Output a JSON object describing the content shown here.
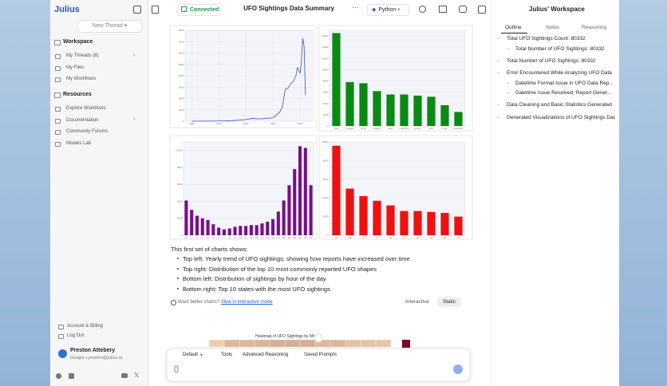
{
  "sidebar": {
    "brand": "Julius",
    "new_thread": "New Thread",
    "workspace": {
      "title": "Workspace",
      "items": [
        "My Threads (8)",
        "My Files",
        "My Workflows"
      ]
    },
    "resources": {
      "title": "Resources",
      "items": [
        "Explore Workflows",
        "Documentation",
        "Community Forums",
        "Models Lab"
      ]
    },
    "account": [
      "Account & Billing",
      "Log Out"
    ],
    "user": {
      "name": "Preston Attebery",
      "email": "Google • preston@julius.ai"
    }
  },
  "topbar": {
    "status": "Connected",
    "title": "UFO Sightings Data Summary",
    "language": "Python"
  },
  "charts": [
    {
      "type": "line",
      "color": "#3a4fd0",
      "x": [
        1930,
        1950,
        1960,
        1970,
        1975,
        1980,
        1985,
        1990,
        1995,
        1997,
        1999,
        2001,
        2003,
        2005,
        2007,
        2008,
        2009,
        2010,
        2011,
        2012,
        2013,
        2014
      ],
      "values": [
        0,
        20,
        50,
        150,
        250,
        200,
        250,
        300,
        800,
        1300,
        2800,
        2900,
        3300,
        3500,
        4000,
        4700,
        4500,
        4200,
        5200,
        7300,
        6600,
        2300
      ],
      "xlim": [
        1925,
        2020
      ],
      "xticks": [
        1930,
        1950,
        1970,
        1990,
        2010
      ],
      "ylim": [
        0,
        8000
      ],
      "yticks": [
        0,
        1000,
        2000,
        3000,
        4000,
        5000,
        6000,
        7000,
        8000
      ],
      "grid": true
    },
    {
      "type": "bar",
      "color": "#0a8a12",
      "categories": [
        "light",
        "triangle",
        "circle",
        "fireball",
        "other",
        "unknown",
        "sphere",
        "disk",
        "oval",
        "formation"
      ],
      "values": [
        16500,
        7800,
        7600,
        6200,
        5600,
        5600,
        5400,
        5200,
        3700,
        2500
      ],
      "ylim": [
        0,
        17000
      ],
      "yticks": [
        0,
        2000,
        4000,
        6000,
        8000,
        10000,
        12000,
        14000,
        16000
      ],
      "grid": true
    },
    {
      "type": "bar",
      "color": "#7a0d8a",
      "categories": [
        "0",
        "1",
        "2",
        "3",
        "4",
        "5",
        "6",
        "7",
        "8",
        "9",
        "10",
        "11",
        "12",
        "13",
        "14",
        "15",
        "16",
        "17",
        "18",
        "19",
        "20",
        "21",
        "22",
        "23"
      ],
      "values": [
        4100,
        3000,
        2300,
        2000,
        1800,
        1300,
        900,
        700,
        800,
        1000,
        1100,
        1100,
        1200,
        1200,
        1400,
        1600,
        1900,
        2800,
        4100,
        5900,
        7800,
        10500,
        10300,
        5900
      ],
      "ylim": [
        0,
        11000
      ],
      "yticks": [
        0,
        2000,
        4000,
        6000,
        8000,
        10000
      ],
      "grid": true
    },
    {
      "type": "bar",
      "color": "#ee1111",
      "categories": [
        "ca",
        "wa",
        "fl",
        "tx",
        "ny",
        "il",
        "az",
        "pa",
        "oh",
        "mi"
      ],
      "values": [
        9600,
        5000,
        4200,
        3700,
        3200,
        2600,
        2600,
        2500,
        2400,
        2000
      ],
      "ylim": [
        0,
        10000
      ],
      "yticks": [
        0,
        2000,
        4000,
        6000,
        8000,
        10000
      ],
      "grid": true
    }
  ],
  "message": {
    "intro": "This first set of charts shows:",
    "bullets": [
      "Top left: Yearly trend of UFO sightings, showing how reports have increased over time",
      "Top right: Distribution of the top 10 most commonly reported UFO shapes",
      "Bottom left: Distribution of sightings by hour of the day",
      "Bottom right: Top 10 states with the most UFO sightings"
    ],
    "hint": "Want better charts?",
    "link": "View in interactive mode",
    "toggle": [
      "Interactive",
      "Static"
    ]
  },
  "heatmap": {
    "title": "Heatmap of UFO Sightings by Month",
    "values": [
      202,
      313,
      313,
      324,
      363,
      364,
      369,
      318,
      324,
      268,
      259,
      250
    ],
    "clim": [
      0,
      2500
    ]
  },
  "input": {
    "mode": "Default",
    "buttons": [
      "Tools",
      "Advanced Reasoning",
      "Saved Prompts"
    ]
  },
  "workspace_panel": {
    "title": "Julius' Workspace",
    "tabs": [
      "Outline",
      "Notes",
      "Reasoning"
    ],
    "outline": [
      {
        "title": "Total UFO Sightings Count: 80332",
        "children": [
          "Total Number of UFO Sightings: 80332"
        ]
      },
      {
        "title": "Total Number of UFO Sightings: 80332",
        "children": []
      },
      {
        "title": "Error Encountered While Analyzing UFO Data",
        "children": [
          "Datetime Format Issue in UFO Data Rep...",
          "Datetime Issue Resolved; Report Gener..."
        ]
      },
      {
        "title": "Data Cleaning and Basic Statistics Generated",
        "children": []
      },
      {
        "title": "Generated Visualizations of UFO Sightings Data",
        "children": []
      }
    ]
  }
}
